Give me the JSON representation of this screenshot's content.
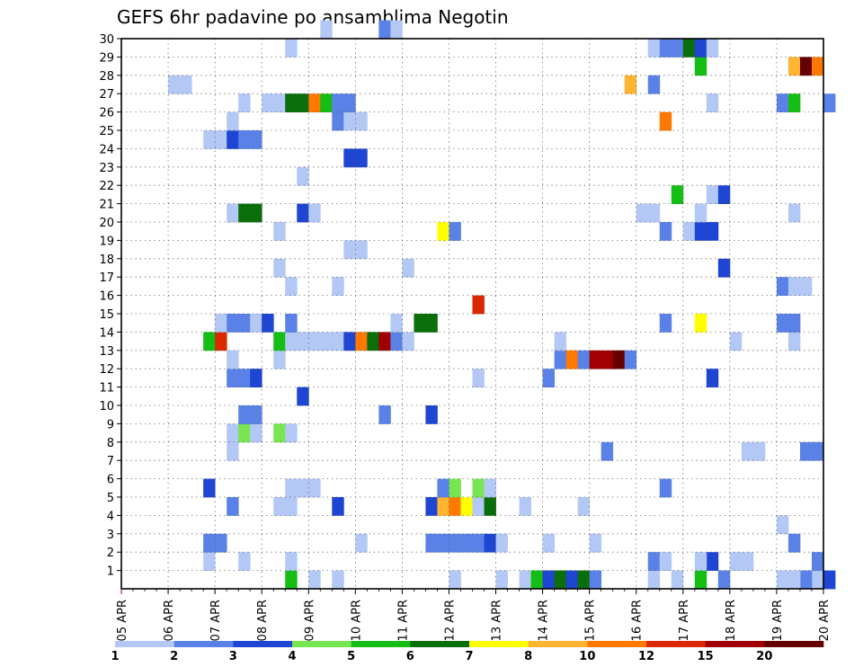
{
  "chart_data": {
    "type": "heatmap",
    "title": "GEFS 6hr padavine po ansamblima Negotin",
    "xlabel": "",
    "ylabel": "",
    "x_ticks": [
      "05 APR",
      "06 APR",
      "07 APR",
      "08 APR",
      "09 APR",
      "10 APR",
      "11 APR",
      "12 APR",
      "13 APR",
      "14 APR",
      "15 APR",
      "16 APR",
      "17 APR",
      "18 APR",
      "19 APR",
      "20 APR"
    ],
    "y_ticks": [
      "1",
      "2",
      "3",
      "4",
      "5",
      "6",
      "7",
      "8",
      "9",
      "10",
      "11",
      "12",
      "13",
      "14",
      "15",
      "16",
      "17",
      "18",
      "19",
      "20",
      "21",
      "22",
      "23",
      "24",
      "25",
      "26",
      "27",
      "28",
      "29",
      "30"
    ],
    "x_range": [
      "05 APR 00Z",
      "20 APR 00Z"
    ],
    "time_step_hours": 6,
    "y_range": [
      0,
      30
    ],
    "grid": true,
    "colorbar": {
      "position": "bottom",
      "labels": [
        "1",
        "2",
        "3",
        "4",
        "5",
        "6",
        "7",
        "8",
        "10",
        "12",
        "15",
        "20"
      ],
      "colors": [
        "#b4c8f5",
        "#5a82e6",
        "#1e46d2",
        "#78e650",
        "#14be14",
        "#0a6e0a",
        "#ffff00",
        "#ffb432",
        "#ff7800",
        "#dc2800",
        "#a00000",
        "#640000"
      ]
    },
    "cells": [
      {
        "member": 0,
        "step": 14,
        "value": 5
      },
      {
        "member": 0,
        "step": 16,
        "value": 1
      },
      {
        "member": 0,
        "step": 18,
        "value": 1
      },
      {
        "member": 0,
        "step": 28,
        "value": 1
      },
      {
        "member": 0,
        "step": 32,
        "value": 1
      },
      {
        "member": 0,
        "step": 34,
        "value": 1
      },
      {
        "member": 0,
        "step": 35,
        "value": 5
      },
      {
        "member": 0,
        "step": 36,
        "value": 3
      },
      {
        "member": 0,
        "step": 37,
        "value": 6
      },
      {
        "member": 0,
        "step": 38,
        "value": 3
      },
      {
        "member": 0,
        "step": 39,
        "value": 6
      },
      {
        "member": 0,
        "step": 40,
        "value": 2
      },
      {
        "member": 0,
        "step": 45,
        "value": 1
      },
      {
        "member": 0,
        "step": 47,
        "value": 1
      },
      {
        "member": 0,
        "step": 49,
        "value": 5
      },
      {
        "member": 0,
        "step": 51,
        "value": 2
      },
      {
        "member": 0,
        "step": 56,
        "value": 1
      },
      {
        "member": 0,
        "step": 59,
        "value": 1
      },
      {
        "member": 0,
        "step": 60,
        "value": 3
      },
      {
        "member": 0,
        "step": 64,
        "value": 1
      },
      {
        "member": 0,
        "step": 58,
        "value": 2
      },
      {
        "member": 0,
        "step": 57,
        "value": 1
      },
      {
        "member": 1,
        "step": 7,
        "value": 1
      },
      {
        "member": 1,
        "step": 10,
        "value": 1
      },
      {
        "member": 1,
        "step": 14,
        "value": 1
      },
      {
        "member": 1,
        "step": 45,
        "value": 2
      },
      {
        "member": 1,
        "step": 46,
        "value": 1
      },
      {
        "member": 1,
        "step": 50,
        "value": 3
      },
      {
        "member": 1,
        "step": 49,
        "value": 1
      },
      {
        "member": 1,
        "step": 52,
        "value": 1
      },
      {
        "member": 1,
        "step": 53,
        "value": 1
      },
      {
        "member": 1,
        "step": 59,
        "value": 2
      },
      {
        "member": 2,
        "step": 7,
        "value": 2
      },
      {
        "member": 2,
        "step": 8,
        "value": 2
      },
      {
        "member": 2,
        "step": 20,
        "value": 1
      },
      {
        "member": 2,
        "step": 26,
        "value": 2
      },
      {
        "member": 2,
        "step": 27,
        "value": 2
      },
      {
        "member": 2,
        "step": 28,
        "value": 2
      },
      {
        "member": 2,
        "step": 29,
        "value": 2
      },
      {
        "member": 2,
        "step": 30,
        "value": 2
      },
      {
        "member": 2,
        "step": 31,
        "value": 3
      },
      {
        "member": 2,
        "step": 32,
        "value": 1
      },
      {
        "member": 2,
        "step": 36,
        "value": 1
      },
      {
        "member": 2,
        "step": 40,
        "value": 1
      },
      {
        "member": 2,
        "step": 57,
        "value": 2
      },
      {
        "member": 3,
        "step": 56,
        "value": 1
      },
      {
        "member": 4,
        "step": 9,
        "value": 2
      },
      {
        "member": 4,
        "step": 13,
        "value": 1
      },
      {
        "member": 4,
        "step": 14,
        "value": 1
      },
      {
        "member": 4,
        "step": 18,
        "value": 3
      },
      {
        "member": 4,
        "step": 26,
        "value": 3
      },
      {
        "member": 4,
        "step": 27,
        "value": 8
      },
      {
        "member": 4,
        "step": 28,
        "value": 10
      },
      {
        "member": 4,
        "step": 29,
        "value": 7
      },
      {
        "member": 4,
        "step": 30,
        "value": 1
      },
      {
        "member": 4,
        "step": 31,
        "value": 6
      },
      {
        "member": 4,
        "step": 34,
        "value": 1
      },
      {
        "member": 4,
        "step": 39,
        "value": 1
      },
      {
        "member": 5,
        "step": 7,
        "value": 3
      },
      {
        "member": 5,
        "step": 14,
        "value": 1
      },
      {
        "member": 5,
        "step": 15,
        "value": 1
      },
      {
        "member": 5,
        "step": 16,
        "value": 1
      },
      {
        "member": 5,
        "step": 27,
        "value": 2
      },
      {
        "member": 5,
        "step": 28,
        "value": 4
      },
      {
        "member": 5,
        "step": 30,
        "value": 4
      },
      {
        "member": 5,
        "step": 31,
        "value": 1
      },
      {
        "member": 5,
        "step": 46,
        "value": 2
      },
      {
        "member": 7,
        "step": 9,
        "value": 1
      },
      {
        "member": 7,
        "step": 41,
        "value": 2
      },
      {
        "member": 7,
        "step": 53,
        "value": 1
      },
      {
        "member": 7,
        "step": 54,
        "value": 1
      },
      {
        "member": 7,
        "step": 58,
        "value": 2
      },
      {
        "member": 7,
        "step": 59,
        "value": 2
      },
      {
        "member": 8,
        "step": 9,
        "value": 1
      },
      {
        "member": 8,
        "step": 10,
        "value": 4
      },
      {
        "member": 8,
        "step": 11,
        "value": 1
      },
      {
        "member": 8,
        "step": 13,
        "value": 4
      },
      {
        "member": 8,
        "step": 14,
        "value": 1
      },
      {
        "member": 9,
        "step": 10,
        "value": 2
      },
      {
        "member": 9,
        "step": 11,
        "value": 2
      },
      {
        "member": 9,
        "step": 22,
        "value": 2
      },
      {
        "member": 9,
        "step": 26,
        "value": 3
      },
      {
        "member": 10,
        "step": 15,
        "value": 3
      },
      {
        "member": 11,
        "step": 9,
        "value": 2
      },
      {
        "member": 11,
        "step": 10,
        "value": 2
      },
      {
        "member": 11,
        "step": 11,
        "value": 3
      },
      {
        "member": 11,
        "step": 30,
        "value": 1
      },
      {
        "member": 11,
        "step": 36,
        "value": 2
      },
      {
        "member": 11,
        "step": 50,
        "value": 3
      },
      {
        "member": 12,
        "step": 9,
        "value": 1
      },
      {
        "member": 12,
        "step": 13,
        "value": 1
      },
      {
        "member": 12,
        "step": 37,
        "value": 2
      },
      {
        "member": 12,
        "step": 38,
        "value": 10
      },
      {
        "member": 12,
        "step": 39,
        "value": 2
      },
      {
        "member": 12,
        "step": 40,
        "value": 15
      },
      {
        "member": 12,
        "step": 41,
        "value": 15
      },
      {
        "member": 12,
        "step": 42,
        "value": 20
      },
      {
        "member": 12,
        "step": 43,
        "value": 2
      },
      {
        "member": 13,
        "step": 7,
        "value": 5
      },
      {
        "member": 13,
        "step": 8,
        "value": 12
      },
      {
        "member": 13,
        "step": 13,
        "value": 5
      },
      {
        "member": 13,
        "step": 14,
        "value": 1
      },
      {
        "member": 13,
        "step": 15,
        "value": 1
      },
      {
        "member": 13,
        "step": 16,
        "value": 1
      },
      {
        "member": 13,
        "step": 17,
        "value": 1
      },
      {
        "member": 13,
        "step": 18,
        "value": 1
      },
      {
        "member": 13,
        "step": 19,
        "value": 3
      },
      {
        "member": 13,
        "step": 20,
        "value": 10
      },
      {
        "member": 13,
        "step": 21,
        "value": 6
      },
      {
        "member": 13,
        "step": 22,
        "value": 15
      },
      {
        "member": 13,
        "step": 23,
        "value": 2
      },
      {
        "member": 13,
        "step": 24,
        "value": 1
      },
      {
        "member": 13,
        "step": 37,
        "value": 1
      },
      {
        "member": 13,
        "step": 52,
        "value": 1
      },
      {
        "member": 13,
        "step": 57,
        "value": 1
      },
      {
        "member": 14,
        "step": 8,
        "value": 1
      },
      {
        "member": 14,
        "step": 9,
        "value": 2
      },
      {
        "member": 14,
        "step": 10,
        "value": 2
      },
      {
        "member": 14,
        "step": 11,
        "value": 1
      },
      {
        "member": 14,
        "step": 12,
        "value": 3
      },
      {
        "member": 14,
        "step": 14,
        "value": 2
      },
      {
        "member": 14,
        "step": 23,
        "value": 1
      },
      {
        "member": 14,
        "step": 25,
        "value": 6
      },
      {
        "member": 14,
        "step": 26,
        "value": 6
      },
      {
        "member": 14,
        "step": 46,
        "value": 2
      },
      {
        "member": 14,
        "step": 49,
        "value": 7
      },
      {
        "member": 14,
        "step": 56,
        "value": 2
      },
      {
        "member": 14,
        "step": 57,
        "value": 2
      },
      {
        "member": 15,
        "step": 30,
        "value": 12
      },
      {
        "member": 16,
        "step": 14,
        "value": 1
      },
      {
        "member": 16,
        "step": 18,
        "value": 1
      },
      {
        "member": 16,
        "step": 56,
        "value": 2
      },
      {
        "member": 16,
        "step": 57,
        "value": 1
      },
      {
        "member": 16,
        "step": 58,
        "value": 1
      },
      {
        "member": 17,
        "step": 13,
        "value": 1
      },
      {
        "member": 17,
        "step": 24,
        "value": 1
      },
      {
        "member": 17,
        "step": 51,
        "value": 3
      },
      {
        "member": 18,
        "step": 19,
        "value": 1
      },
      {
        "member": 18,
        "step": 20,
        "value": 1
      },
      {
        "member": 19,
        "step": 13,
        "value": 1
      },
      {
        "member": 19,
        "step": 27,
        "value": 7
      },
      {
        "member": 19,
        "step": 28,
        "value": 2
      },
      {
        "member": 19,
        "step": 46,
        "value": 2
      },
      {
        "member": 19,
        "step": 48,
        "value": 1
      },
      {
        "member": 19,
        "step": 49,
        "value": 3
      },
      {
        "member": 19,
        "step": 50,
        "value": 3
      },
      {
        "member": 20,
        "step": 9,
        "value": 1
      },
      {
        "member": 20,
        "step": 10,
        "value": 6
      },
      {
        "member": 20,
        "step": 11,
        "value": 6
      },
      {
        "member": 20,
        "step": 15,
        "value": 3
      },
      {
        "member": 20,
        "step": 16,
        "value": 1
      },
      {
        "member": 20,
        "step": 44,
        "value": 1
      },
      {
        "member": 20,
        "step": 45,
        "value": 1
      },
      {
        "member": 20,
        "step": 49,
        "value": 1
      },
      {
        "member": 20,
        "step": 57,
        "value": 1
      },
      {
        "member": 21,
        "step": 47,
        "value": 5
      },
      {
        "member": 21,
        "step": 50,
        "value": 1
      },
      {
        "member": 21,
        "step": 51,
        "value": 3
      },
      {
        "member": 22,
        "step": 15,
        "value": 1
      },
      {
        "member": 23,
        "step": 19,
        "value": 3
      },
      {
        "member": 23,
        "step": 20,
        "value": 3
      },
      {
        "member": 24,
        "step": 7,
        "value": 1
      },
      {
        "member": 24,
        "step": 8,
        "value": 1
      },
      {
        "member": 24,
        "step": 9,
        "value": 3
      },
      {
        "member": 24,
        "step": 10,
        "value": 2
      },
      {
        "member": 24,
        "step": 11,
        "value": 2
      },
      {
        "member": 25,
        "step": 9,
        "value": 1
      },
      {
        "member": 25,
        "step": 18,
        "value": 2
      },
      {
        "member": 25,
        "step": 19,
        "value": 1
      },
      {
        "member": 25,
        "step": 20,
        "value": 1
      },
      {
        "member": 25,
        "step": 46,
        "value": 10
      },
      {
        "member": 26,
        "step": 10,
        "value": 1
      },
      {
        "member": 26,
        "step": 12,
        "value": 1
      },
      {
        "member": 26,
        "step": 13,
        "value": 1
      },
      {
        "member": 26,
        "step": 14,
        "value": 6
      },
      {
        "member": 26,
        "step": 15,
        "value": 6
      },
      {
        "member": 26,
        "step": 16,
        "value": 10
      },
      {
        "member": 26,
        "step": 17,
        "value": 5
      },
      {
        "member": 26,
        "step": 18,
        "value": 2
      },
      {
        "member": 26,
        "step": 19,
        "value": 2
      },
      {
        "member": 26,
        "step": 50,
        "value": 1
      },
      {
        "member": 26,
        "step": 56,
        "value": 2
      },
      {
        "member": 26,
        "step": 57,
        "value": 5
      },
      {
        "member": 26,
        "step": 60,
        "value": 2
      },
      {
        "member": 27,
        "step": 4,
        "value": 1
      },
      {
        "member": 27,
        "step": 5,
        "value": 1
      },
      {
        "member": 27,
        "step": 43,
        "value": 8
      },
      {
        "member": 27,
        "step": 45,
        "value": 2
      },
      {
        "member": 28,
        "step": 49,
        "value": 5
      },
      {
        "member": 28,
        "step": 57,
        "value": 8
      },
      {
        "member": 28,
        "step": 58,
        "value": 20
      },
      {
        "member": 28,
        "step": 59,
        "value": 10
      },
      {
        "member": 29,
        "step": 14,
        "value": 1
      },
      {
        "member": 29,
        "step": 45,
        "value": 1
      },
      {
        "member": 29,
        "step": 46,
        "value": 2
      },
      {
        "member": 29,
        "step": 47,
        "value": 2
      },
      {
        "member": 29,
        "step": 48,
        "value": 6
      },
      {
        "member": 29,
        "step": 49,
        "value": 3
      },
      {
        "member": 29,
        "step": 50,
        "value": 1
      },
      {
        "member": 30,
        "step": 17,
        "value": 1
      },
      {
        "member": 30,
        "step": 22,
        "value": 2
      },
      {
        "member": 30,
        "step": 23,
        "value": 1
      }
    ]
  }
}
